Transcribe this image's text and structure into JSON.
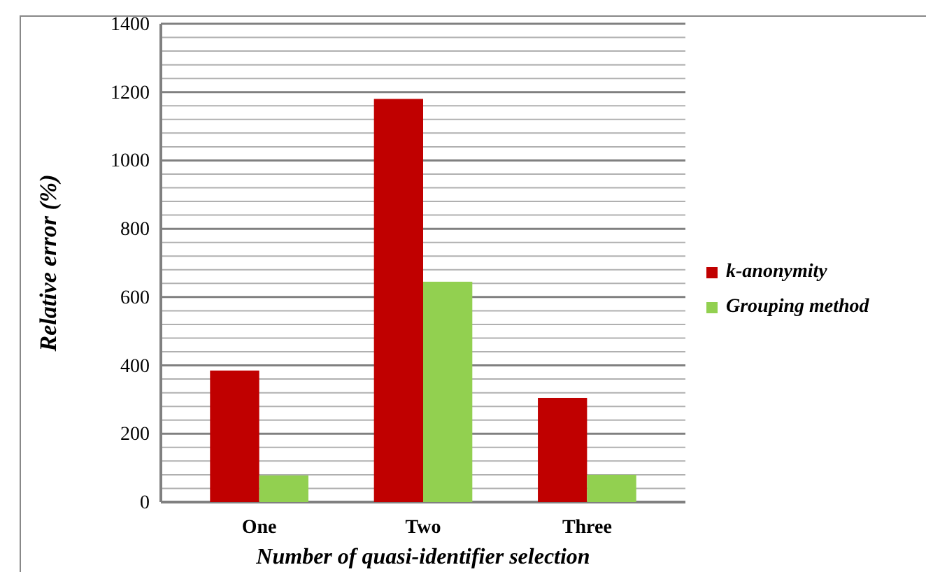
{
  "chart_data": {
    "type": "bar",
    "xlabel": "Number of quasi-identifier selection",
    "ylabel": "Relative error (%)",
    "categories": [
      "One",
      "Two",
      "Three"
    ],
    "series": [
      {
        "name": "k-anonymity",
        "color": "#c00000",
        "values": [
          385,
          1180,
          305
        ]
      },
      {
        "name": "Grouping method",
        "color": "#92d050",
        "values": [
          78,
          645,
          80
        ]
      }
    ],
    "ylim": [
      0,
      1400
    ],
    "yticks": [
      0,
      {
        "value": 40,
        "label": null
      },
      {
        "value": 80,
        "label": null
      },
      {
        "value": 120,
        "label": null
      },
      {
        "value": 160,
        "label": null
      },
      200,
      {
        "value": 240,
        "label": null
      },
      {
        "value": 280,
        "label": null
      },
      {
        "value": 320,
        "label": null
      },
      {
        "value": 360,
        "label": null
      },
      400,
      {
        "value": 440,
        "label": null
      },
      {
        "value": 480,
        "label": null
      },
      {
        "value": 520,
        "label": null
      },
      {
        "value": 560,
        "label": null
      },
      600,
      {
        "value": 640,
        "label": null
      },
      {
        "value": 680,
        "label": null
      },
      {
        "value": 720,
        "label": null
      },
      {
        "value": 760,
        "label": null
      },
      800,
      {
        "value": 840,
        "label": null
      },
      {
        "value": 880,
        "label": null
      },
      {
        "value": 920,
        "label": null
      },
      {
        "value": 960,
        "label": null
      },
      1000,
      {
        "value": 1040,
        "label": null
      },
      {
        "value": 1080,
        "label": null
      },
      {
        "value": 1120,
        "label": null
      },
      {
        "value": 1160,
        "label": null
      },
      1200,
      {
        "value": 1240,
        "label": null
      },
      {
        "value": 1280,
        "label": null
      },
      {
        "value": 1320,
        "label": null
      },
      {
        "value": 1360,
        "label": null
      },
      1400
    ],
    "grid": "y",
    "legend": "right"
  }
}
